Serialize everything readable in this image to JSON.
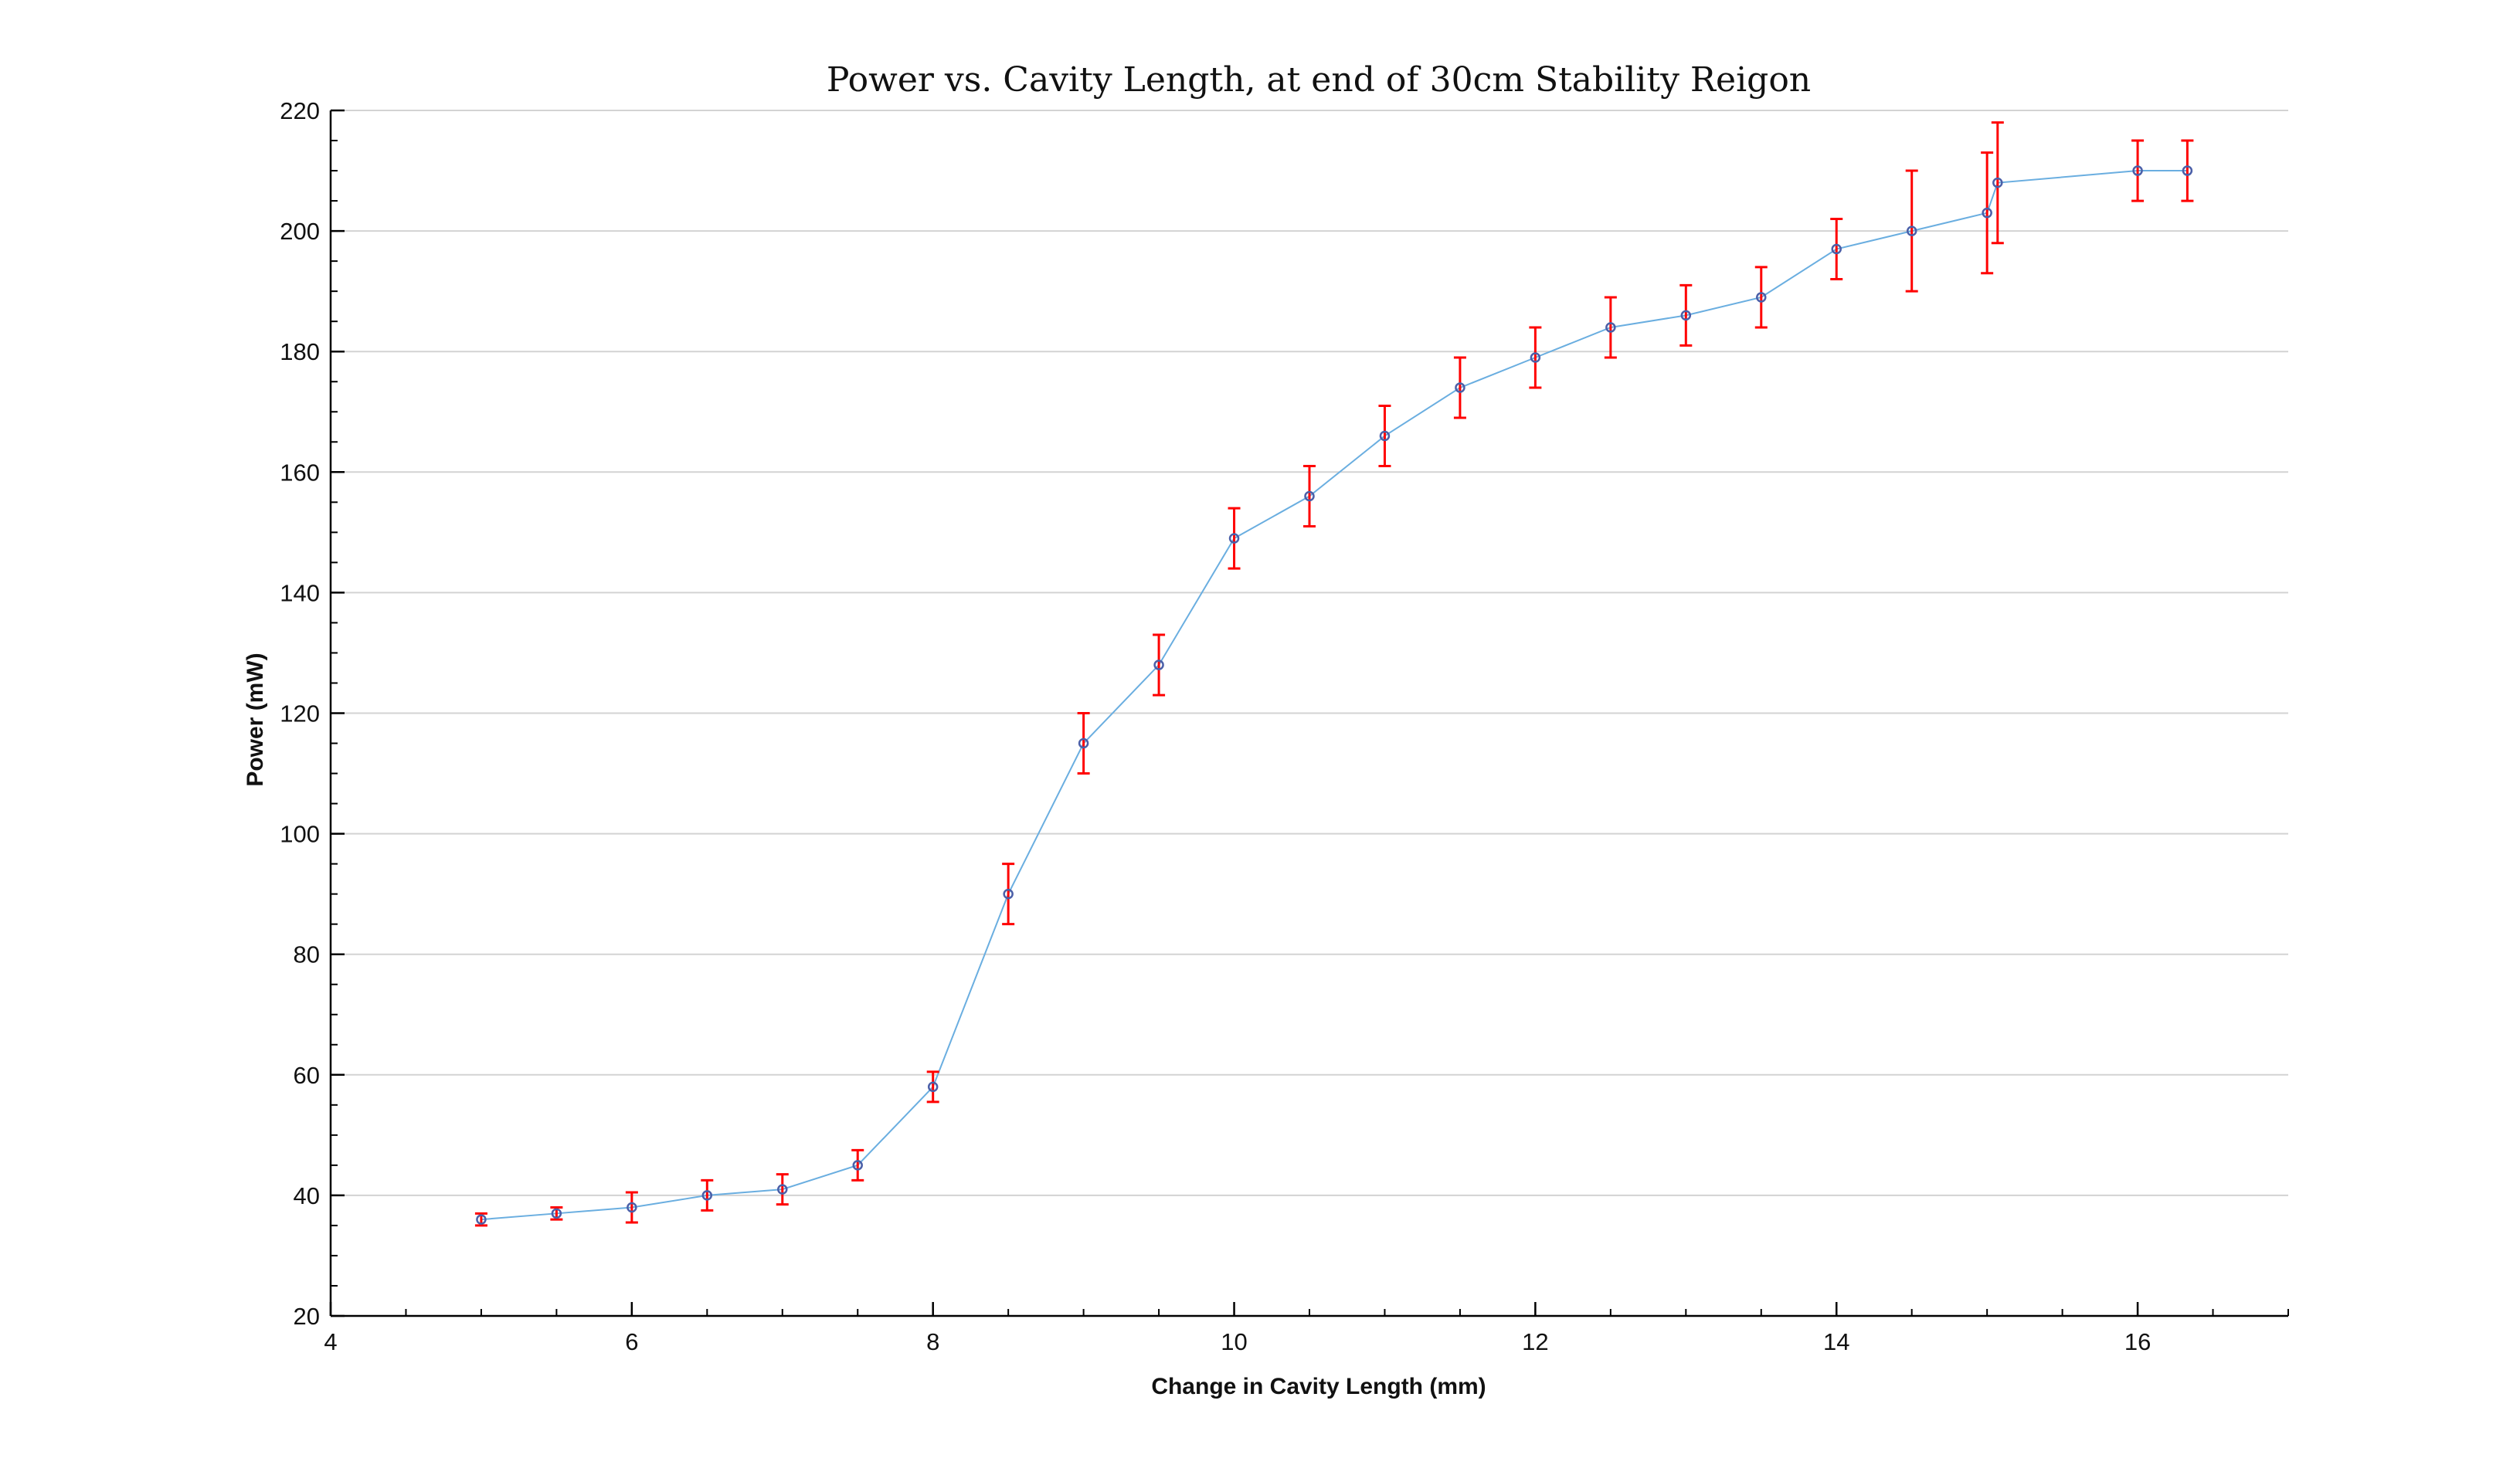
{
  "chart_data": {
    "type": "scatter",
    "title": "Power vs. Cavity Length, at end of 30cm Stability Reigon",
    "xlabel": "Change in Cavity Length (mm)",
    "ylabel": "Power (mW)",
    "xlim": [
      4,
      17
    ],
    "ylim": [
      20,
      220
    ],
    "xticks": [
      4,
      6,
      8,
      10,
      12,
      14,
      16
    ],
    "yticks": [
      20,
      40,
      60,
      80,
      100,
      120,
      140,
      160,
      180,
      200,
      220
    ],
    "x_minor_step": 0.5,
    "y_minor_step": 5,
    "grid": "horizontal",
    "legend": "none",
    "colors": {
      "line": "#6aaee0",
      "marker_edge": "#4b5fa8",
      "error_bar": "#ff0000",
      "grid": "#d3d3d3",
      "axis": "#000000"
    },
    "series": [
      {
        "x": [
          5.0,
          5.5,
          6.0,
          6.5,
          7.0,
          7.5,
          8.0,
          8.5,
          9.0,
          9.5,
          10.0,
          10.5,
          11.0,
          11.5,
          12.0,
          12.5,
          13.0,
          13.5,
          14.0,
          14.5,
          15.0,
          15.07,
          16.0,
          16.33
        ],
        "y": [
          36,
          37,
          38,
          40,
          41,
          45,
          58,
          90,
          115,
          128,
          149,
          156,
          166,
          174,
          179,
          184,
          186,
          189,
          197,
          200,
          203,
          208,
          210,
          210
        ],
        "error": [
          1,
          1,
          2.5,
          2.5,
          2.5,
          2.5,
          2.5,
          5,
          5,
          5,
          5,
          5,
          5,
          5,
          5,
          5,
          5,
          5,
          5,
          10,
          10,
          10,
          5,
          5
        ]
      }
    ]
  }
}
